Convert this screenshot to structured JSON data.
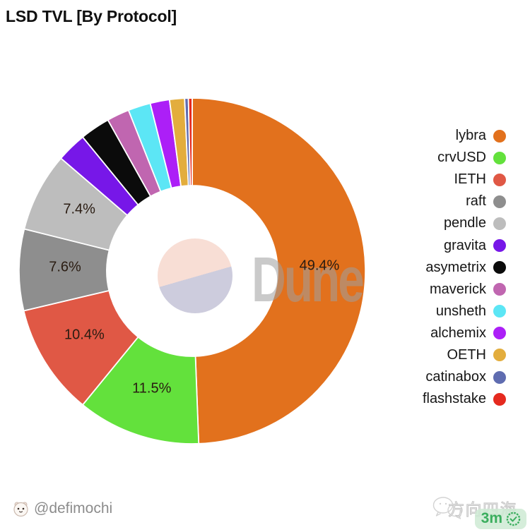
{
  "title": "LSD TVL [By Protocol]",
  "chart_data": {
    "type": "pie",
    "subtype": "donut",
    "title": "LSD TVL [By Protocol]",
    "legend_position": "right",
    "label_format": "percent",
    "label_threshold_pct": 5,
    "watermark": "Dune",
    "series": [
      {
        "label": "lybra",
        "value": 49.4,
        "color": "#E2711D"
      },
      {
        "label": "crvUSD",
        "value": 11.5,
        "color": "#63E13C"
      },
      {
        "label": "IETH",
        "value": 10.4,
        "color": "#E05845"
      },
      {
        "label": "raft",
        "value": 7.6,
        "color": "#8E8E8E"
      },
      {
        "label": "pendle",
        "value": 7.4,
        "color": "#BDBDBD"
      },
      {
        "label": "gravita",
        "value": 2.8,
        "color": "#7717E8"
      },
      {
        "label": "asymetrix",
        "value": 2.8,
        "color": "#0B0B0B"
      },
      {
        "label": "maverick",
        "value": 2.1,
        "color": "#C066B0"
      },
      {
        "label": "unsheth",
        "value": 2.1,
        "color": "#5CE6F5"
      },
      {
        "label": "alchemix",
        "value": 1.8,
        "color": "#AC1FF7"
      },
      {
        "label": "OETH",
        "value": 1.4,
        "color": "#E3AD3D"
      },
      {
        "label": "catinabox",
        "value": 0.35,
        "color": "#5F6CB0"
      },
      {
        "label": "flashstake",
        "value": 0.35,
        "color": "#E52A1F"
      }
    ],
    "visible_slice_labels": [
      "49.4%",
      "11.5%",
      "10.4%",
      "7.6%",
      "7.4%"
    ],
    "center_logo_colors": {
      "top": "#F8DED5",
      "bottom": "#CDCCDD"
    }
  },
  "footer": {
    "handle": "@defimochi",
    "watermark_cn": "方向四海",
    "badge_time": "3m"
  }
}
